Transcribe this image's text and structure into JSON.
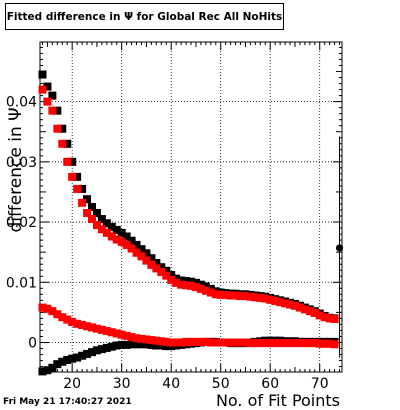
{
  "chart_data": {
    "type": "scatter",
    "title": "Fitted difference in  Ψ  for Global Rec All NoHits",
    "xlabel": "No. of Fit Points",
    "ylabel": "difference in  Ψ",
    "xlim": [
      13.5,
      74.5
    ],
    "ylim": [
      -0.0049,
      0.0499
    ],
    "x_ticks": [
      20,
      30,
      40,
      50,
      60,
      70
    ],
    "y_ticks": [
      0,
      0.01,
      0.02,
      0.03,
      0.04
    ],
    "y_tick_labels": [
      "0",
      "0.01",
      "0.02",
      "0.03",
      "0.04"
    ],
    "grid": true,
    "timestamp": "Fri May 21 17:40:27 2021",
    "series": [
      {
        "color": "#000000",
        "role": "upper",
        "points": [
          [
            14,
            0.0445
          ],
          [
            15,
            0.0425
          ],
          [
            16,
            0.041
          ],
          [
            17,
            0.0385
          ],
          [
            18,
            0.0355
          ],
          [
            19,
            0.033
          ],
          [
            20,
            0.03
          ],
          [
            21,
            0.0275
          ],
          [
            22,
            0.0255
          ],
          [
            23,
            0.0238
          ],
          [
            24,
            0.0225
          ],
          [
            25,
            0.0215
          ],
          [
            26,
            0.0205
          ],
          [
            27,
            0.0198
          ],
          [
            28,
            0.0192
          ],
          [
            29,
            0.0187
          ],
          [
            30,
            0.0182
          ],
          [
            31,
            0.0176
          ],
          [
            32,
            0.0169
          ],
          [
            33,
            0.0162
          ],
          [
            34,
            0.0155
          ],
          [
            35,
            0.0148
          ],
          [
            36,
            0.014
          ],
          [
            37,
            0.0132
          ],
          [
            38,
            0.0125
          ],
          [
            39,
            0.0119
          ],
          [
            40,
            0.0112
          ],
          [
            41,
            0.0106
          ],
          [
            42,
            0.0103
          ],
          [
            43,
            0.0102
          ],
          [
            44,
            0.0101
          ],
          [
            45,
            0.0099
          ],
          [
            46,
            0.0096
          ],
          [
            47,
            0.0093
          ],
          [
            48,
            0.0089
          ],
          [
            49,
            0.0085
          ],
          [
            50,
            0.0083
          ],
          [
            51,
            0.0082
          ],
          [
            52,
            0.0081
          ],
          [
            53,
            0.0081
          ],
          [
            54,
            0.008
          ],
          [
            55,
            0.008
          ],
          [
            56,
            0.0079
          ],
          [
            57,
            0.0078
          ],
          [
            58,
            0.0077
          ],
          [
            59,
            0.0076
          ],
          [
            60,
            0.0074
          ],
          [
            61,
            0.0072
          ],
          [
            62,
            0.007
          ],
          [
            63,
            0.0068
          ],
          [
            64,
            0.0066
          ],
          [
            65,
            0.0064
          ],
          [
            66,
            0.0061
          ],
          [
            67,
            0.0058
          ],
          [
            68,
            0.0055
          ],
          [
            69,
            0.0052
          ],
          [
            70,
            0.0048
          ],
          [
            71,
            0.0044
          ],
          [
            72,
            0.0041
          ],
          [
            73,
            0.004
          ]
        ]
      },
      {
        "color": "#ff0000",
        "role": "upper",
        "points": [
          [
            14,
            0.042
          ],
          [
            15,
            0.04
          ],
          [
            16,
            0.0385
          ],
          [
            17,
            0.0355
          ],
          [
            18,
            0.033
          ],
          [
            19,
            0.03
          ],
          [
            20,
            0.0275
          ],
          [
            21,
            0.0255
          ],
          [
            22,
            0.0232
          ],
          [
            23,
            0.0215
          ],
          [
            24,
            0.0205
          ],
          [
            25,
            0.0195
          ],
          [
            26,
            0.0188
          ],
          [
            27,
            0.0182
          ],
          [
            28,
            0.0176
          ],
          [
            29,
            0.0171
          ],
          [
            30,
            0.0167
          ],
          [
            31,
            0.0162
          ],
          [
            32,
            0.0156
          ],
          [
            33,
            0.0149
          ],
          [
            34,
            0.0143
          ],
          [
            35,
            0.0136
          ],
          [
            36,
            0.0129
          ],
          [
            37,
            0.0123
          ],
          [
            38,
            0.0117
          ],
          [
            39,
            0.0111
          ],
          [
            40,
            0.0104
          ],
          [
            41,
            0.0099
          ],
          [
            42,
            0.0096
          ],
          [
            43,
            0.0095
          ],
          [
            44,
            0.0094
          ],
          [
            45,
            0.0092
          ],
          [
            46,
            0.0089
          ],
          [
            47,
            0.0086
          ],
          [
            48,
            0.0083
          ],
          [
            49,
            0.008
          ],
          [
            50,
            0.0079
          ],
          [
            51,
            0.0079
          ],
          [
            52,
            0.0078
          ],
          [
            53,
            0.0078
          ],
          [
            54,
            0.0077
          ],
          [
            55,
            0.0077
          ],
          [
            56,
            0.0076
          ],
          [
            57,
            0.0075
          ],
          [
            58,
            0.0074
          ],
          [
            59,
            0.0073
          ],
          [
            60,
            0.0071
          ],
          [
            61,
            0.0069
          ],
          [
            62,
            0.0067
          ],
          [
            63,
            0.0065
          ],
          [
            64,
            0.0063
          ],
          [
            65,
            0.0061
          ],
          [
            66,
            0.0058
          ],
          [
            67,
            0.0055
          ],
          [
            68,
            0.0052
          ],
          [
            69,
            0.0049
          ],
          [
            70,
            0.0045
          ],
          [
            71,
            0.0042
          ],
          [
            72,
            0.004
          ],
          [
            73,
            0.0039
          ]
        ]
      },
      {
        "color": "#000000",
        "role": "lower",
        "points": [
          [
            14,
            -0.0048
          ],
          [
            15,
            -0.0046
          ],
          [
            16,
            -0.0042
          ],
          [
            17,
            -0.0036
          ],
          [
            18,
            -0.0032
          ],
          [
            19,
            -0.0029
          ],
          [
            20,
            -0.0027
          ],
          [
            21,
            -0.0025
          ],
          [
            22,
            -0.0022
          ],
          [
            23,
            -0.0019
          ],
          [
            24,
            -0.0016
          ],
          [
            25,
            -0.0013
          ],
          [
            26,
            -0.0011
          ],
          [
            27,
            -0.0009
          ],
          [
            28,
            -0.0007
          ],
          [
            29,
            -0.0005
          ],
          [
            30,
            -0.0004
          ],
          [
            31,
            -0.0004
          ],
          [
            32,
            -0.0003
          ],
          [
            33,
            -0.0003
          ],
          [
            34,
            -0.0003
          ],
          [
            35,
            -0.0003
          ],
          [
            36,
            -0.0004
          ],
          [
            37,
            -0.0005
          ],
          [
            38,
            -0.0005
          ],
          [
            39,
            -0.0006
          ],
          [
            40,
            -0.0006
          ],
          [
            41,
            -0.0005
          ],
          [
            42,
            -0.0004
          ],
          [
            43,
            -0.0003
          ],
          [
            44,
            -0.0002
          ],
          [
            45,
            -0.0001
          ],
          [
            46,
            0.0
          ],
          [
            47,
            0.0001
          ],
          [
            48,
            0.0001
          ],
          [
            49,
            0.0001
          ],
          [
            50,
            0.0
          ],
          [
            51,
            0.0
          ],
          [
            52,
            -0.0001
          ],
          [
            53,
            -0.0001
          ],
          [
            54,
            -0.0001
          ],
          [
            55,
            -0.0001
          ],
          [
            56,
            0.0
          ],
          [
            57,
            0.0001
          ],
          [
            58,
            0.0002
          ],
          [
            59,
            0.0003
          ],
          [
            60,
            0.0003
          ],
          [
            61,
            0.0003
          ],
          [
            62,
            0.0003
          ],
          [
            63,
            0.0002
          ],
          [
            64,
            0.0002
          ],
          [
            65,
            0.0002
          ],
          [
            66,
            0.0001
          ],
          [
            67,
            0.0001
          ],
          [
            68,
            0.0001
          ],
          [
            69,
            0.0001
          ],
          [
            70,
            0.0001
          ],
          [
            71,
            0.0001
          ],
          [
            72,
            0.0001
          ],
          [
            73,
            0.0001
          ]
        ]
      },
      {
        "color": "#ff0000",
        "role": "lower",
        "points": [
          [
            14,
            0.0058
          ],
          [
            15,
            0.0056
          ],
          [
            16,
            0.0052
          ],
          [
            17,
            0.0047
          ],
          [
            18,
            0.0042
          ],
          [
            19,
            0.0038
          ],
          [
            20,
            0.0034
          ],
          [
            21,
            0.0031
          ],
          [
            22,
            0.0029
          ],
          [
            23,
            0.0027
          ],
          [
            24,
            0.0025
          ],
          [
            25,
            0.0023
          ],
          [
            26,
            0.0021
          ],
          [
            27,
            0.0019
          ],
          [
            28,
            0.0017
          ],
          [
            29,
            0.0015
          ],
          [
            30,
            0.0013
          ],
          [
            31,
            0.0011
          ],
          [
            32,
            0.0009
          ],
          [
            33,
            0.0007
          ],
          [
            34,
            0.0006
          ],
          [
            35,
            0.0005
          ],
          [
            36,
            0.0004
          ],
          [
            37,
            0.0003
          ],
          [
            38,
            0.0002
          ],
          [
            39,
            0.0001
          ],
          [
            40,
            0.0
          ],
          [
            41,
            0.0
          ],
          [
            42,
            0.0
          ],
          [
            43,
            0.0001
          ],
          [
            44,
            0.0001
          ],
          [
            45,
            0.0001
          ],
          [
            46,
            0.0001
          ],
          [
            47,
            0.0001
          ],
          [
            48,
            0.0
          ],
          [
            49,
            0.0
          ],
          [
            50,
            0.0
          ],
          [
            51,
            0.0
          ],
          [
            52,
            0.0
          ],
          [
            53,
            0.0
          ],
          [
            54,
            0.0
          ],
          [
            55,
            0.0
          ],
          [
            56,
            -0.0001
          ],
          [
            57,
            -0.0001
          ],
          [
            58,
            -0.0001
          ],
          [
            59,
            -0.0001
          ],
          [
            60,
            -0.0001
          ],
          [
            61,
            -0.0001
          ],
          [
            62,
            -0.0001
          ],
          [
            63,
            -0.0001
          ],
          [
            64,
            -0.0001
          ],
          [
            65,
            -0.0001
          ],
          [
            66,
            -0.0001
          ],
          [
            67,
            -0.0001
          ],
          [
            68,
            -0.0001
          ],
          [
            69,
            -0.0001
          ],
          [
            70,
            -0.0002
          ],
          [
            71,
            -0.0002
          ],
          [
            72,
            -0.0002
          ],
          [
            73,
            -0.0003
          ]
        ]
      },
      {
        "color": "#000000",
        "role": "outlier",
        "points": [
          [
            74,
            0.0157
          ]
        ],
        "error_low": -0.0025,
        "error_high": 0.0342
      }
    ]
  }
}
